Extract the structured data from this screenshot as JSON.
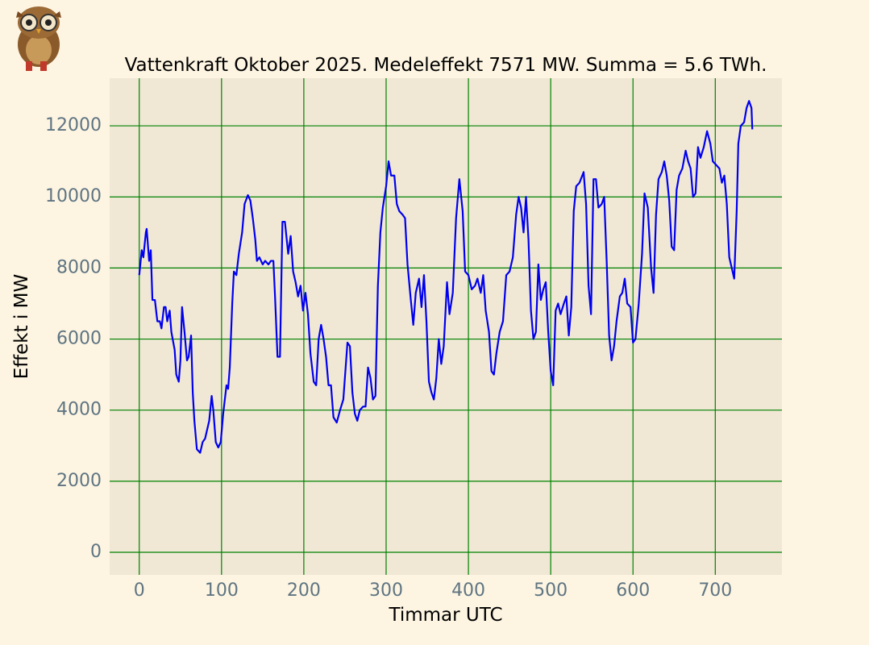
{
  "chart_data": {
    "type": "line",
    "title": "Vattenkraft Oktober 2025. Medeleffekt 7571 MW. Summa = 5.6 TWh.",
    "xlabel": "Timmar UTC",
    "ylabel": "Effekt i MW",
    "x": [
      0,
      3,
      5,
      8,
      9,
      12,
      14,
      16,
      19,
      22,
      25,
      27,
      30,
      32,
      34,
      37,
      39,
      43,
      45,
      48,
      50,
      52,
      55,
      58,
      60,
      63,
      65,
      67,
      70,
      74,
      77,
      80,
      85,
      88,
      90,
      93,
      96,
      99,
      102,
      106,
      108,
      110,
      113,
      115,
      118,
      121,
      125,
      128,
      132,
      135,
      138,
      141,
      143,
      146,
      150,
      153,
      157,
      160,
      163,
      165,
      168,
      171,
      174,
      177,
      181,
      184,
      187,
      190,
      193,
      196,
      199,
      202,
      205,
      208,
      212,
      215,
      218,
      221,
      224,
      227,
      230,
      233,
      236,
      240,
      244,
      248,
      253,
      256,
      259,
      262,
      265,
      268,
      272,
      275,
      278,
      281,
      284,
      287,
      290,
      293,
      296,
      300,
      303,
      306,
      310,
      313,
      316,
      320,
      323,
      326,
      330,
      333,
      336,
      340,
      343,
      346,
      349,
      352,
      355,
      358,
      361,
      364,
      367,
      370,
      374,
      377,
      381,
      385,
      389,
      393,
      396,
      400,
      404,
      408,
      411,
      415,
      418,
      421,
      425,
      428,
      431,
      434,
      438,
      442,
      446,
      450,
      454,
      458,
      461,
      464,
      467,
      470,
      473,
      476,
      479,
      482,
      485,
      488,
      491,
      494,
      497,
      500,
      503,
      506,
      509,
      512,
      516,
      519,
      522,
      525,
      528,
      531,
      535,
      540,
      543,
      546,
      549,
      552,
      555,
      558,
      562,
      565,
      568,
      571,
      574,
      577,
      580,
      584,
      587,
      590,
      593,
      597,
      600,
      603,
      607,
      611,
      614,
      618,
      622,
      625,
      628,
      631,
      635,
      638,
      641,
      644,
      647,
      650,
      653,
      656,
      660,
      664,
      667,
      670,
      673,
      676,
      679,
      682,
      686,
      690,
      694,
      697,
      701,
      705,
      708,
      711,
      714,
      717,
      720,
      723,
      726,
      728,
      731,
      735,
      738,
      741,
      744,
      745
    ],
    "values": [
      7800,
      8500,
      8300,
      9000,
      9100,
      8200,
      8500,
      7100,
      7100,
      6500,
      6500,
      6300,
      6900,
      6900,
      6500,
      6800,
      6200,
      5700,
      5000,
      4800,
      5400,
      6900,
      6200,
      5400,
      5500,
      6100,
      4500,
      3700,
      2900,
      2800,
      3100,
      3200,
      3700,
      4400,
      4000,
      3100,
      2950,
      3100,
      3900,
      4700,
      4600,
      5200,
      7000,
      7900,
      7800,
      8400,
      9000,
      9800,
      10050,
      9900,
      9400,
      8800,
      8200,
      8300,
      8100,
      8200,
      8100,
      8200,
      8200,
      7200,
      5500,
      5500,
      9300,
      9300,
      8400,
      8900,
      7900,
      7600,
      7200,
      7500,
      6800,
      7300,
      6700,
      5600,
      4800,
      4700,
      6000,
      6400,
      6000,
      5500,
      4700,
      4700,
      3800,
      3650,
      4000,
      4300,
      5900,
      5800,
      4500,
      3900,
      3700,
      4000,
      4100,
      4100,
      5200,
      4900,
      4300,
      4400,
      7500,
      9000,
      9700,
      10300,
      11000,
      10600,
      10600,
      9800,
      9600,
      9500,
      9400,
      8100,
      7100,
      6400,
      7300,
      7700,
      6900,
      7800,
      6500,
      4800,
      4500,
      4300,
      4900,
      6000,
      5300,
      5800,
      7600,
      6700,
      7300,
      9400,
      10500,
      9600,
      7900,
      7800,
      7400,
      7500,
      7700,
      7300,
      7800,
      6800,
      6200,
      5100,
      5000,
      5600,
      6200,
      6500,
      7800,
      7900,
      8300,
      9500,
      10000,
      9700,
      9000,
      10000,
      8800,
      6800,
      6000,
      6200,
      8100,
      7100,
      7400,
      7600,
      6200,
      5100,
      4700,
      6800,
      7000,
      6700,
      7000,
      7200,
      6100,
      6900,
      9600,
      10300,
      10400,
      10700,
      9800,
      7500,
      6700,
      10500,
      10500,
      9700,
      9800,
      10000,
      8200,
      6100,
      5400,
      5800,
      6500,
      7200,
      7300,
      7700,
      7000,
      6900,
      5900,
      6000,
      7000,
      8400,
      10100,
      9700,
      8000,
      7300,
      9500,
      10500,
      10700,
      11000,
      10600,
      9900,
      8600,
      8500,
      10200,
      10600,
      10800,
      11300,
      11000,
      10800,
      10000,
      10100,
      11400,
      11100,
      11400,
      11850,
      11500,
      11000,
      10900,
      10800,
      10400,
      10600,
      9800,
      8300,
      8000,
      7700,
      9600,
      11500,
      12000,
      12100,
      12500,
      12700,
      12500,
      11900
    ],
    "color": "#0000ee",
    "grid": true,
    "grid_color": "#008000",
    "xlim": [
      -36,
      781
    ],
    "ylim": [
      -635,
      13340
    ],
    "xticks": [
      0,
      100,
      200,
      300,
      400,
      500,
      600,
      700
    ],
    "yticks": [
      0,
      2000,
      4000,
      6000,
      8000,
      10000,
      12000
    ]
  }
}
